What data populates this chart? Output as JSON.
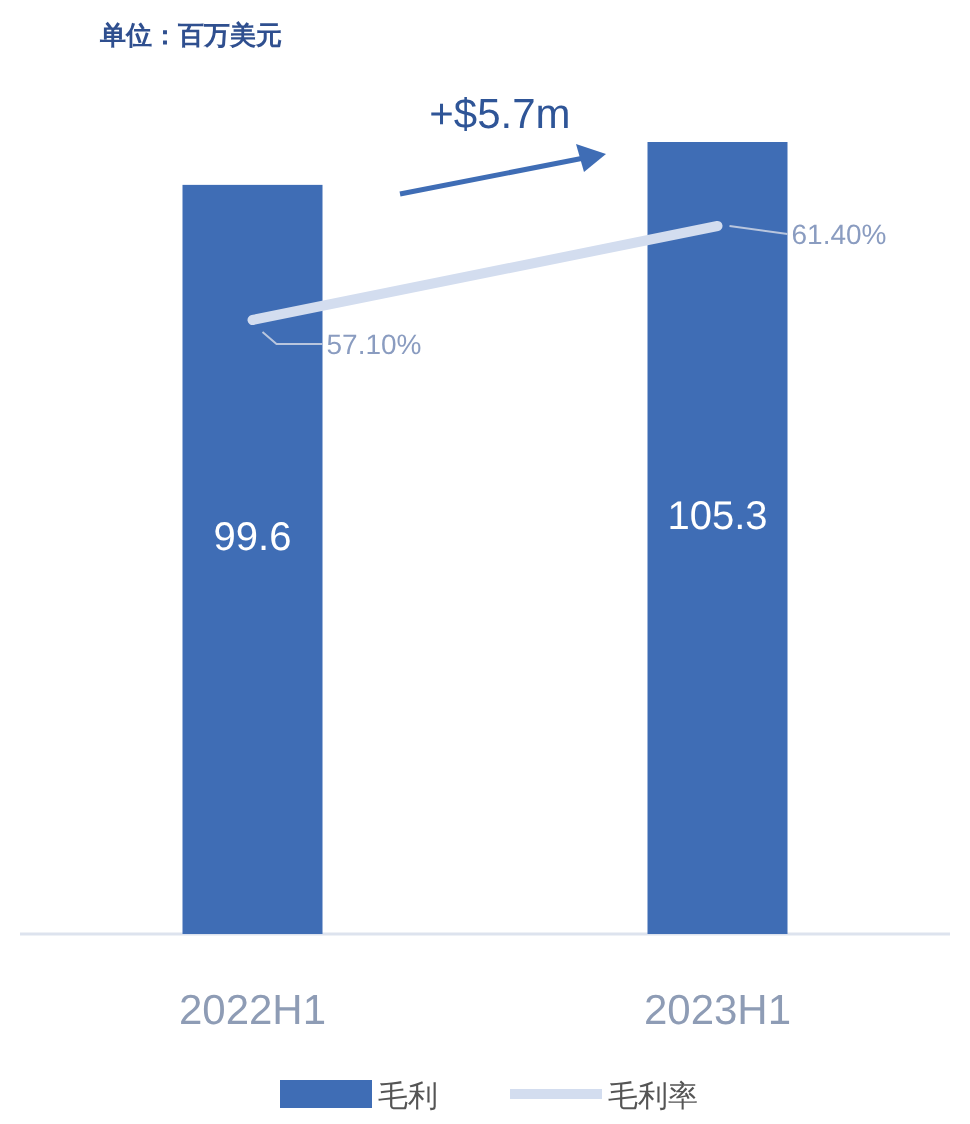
{
  "chart_data": {
    "type": "bar",
    "subtitle": "单位：百万美元",
    "categories": [
      "2022H1",
      "2023H1"
    ],
    "series": [
      {
        "name": "毛利",
        "color": "#3f6db5",
        "values": [
          99.6,
          105.3
        ]
      },
      {
        "name": "毛利率",
        "type": "line",
        "axis": "y2",
        "color": "#d3ddef",
        "values": [
          57.1,
          61.4
        ],
        "value_labels": [
          "57.10%",
          "61.40%"
        ]
      }
    ],
    "data_labels": true,
    "tick_labels": "x",
    "legend": "bottom",
    "marker": "none",
    "grid": false,
    "annotations": [
      "+$5.7m"
    ]
  }
}
